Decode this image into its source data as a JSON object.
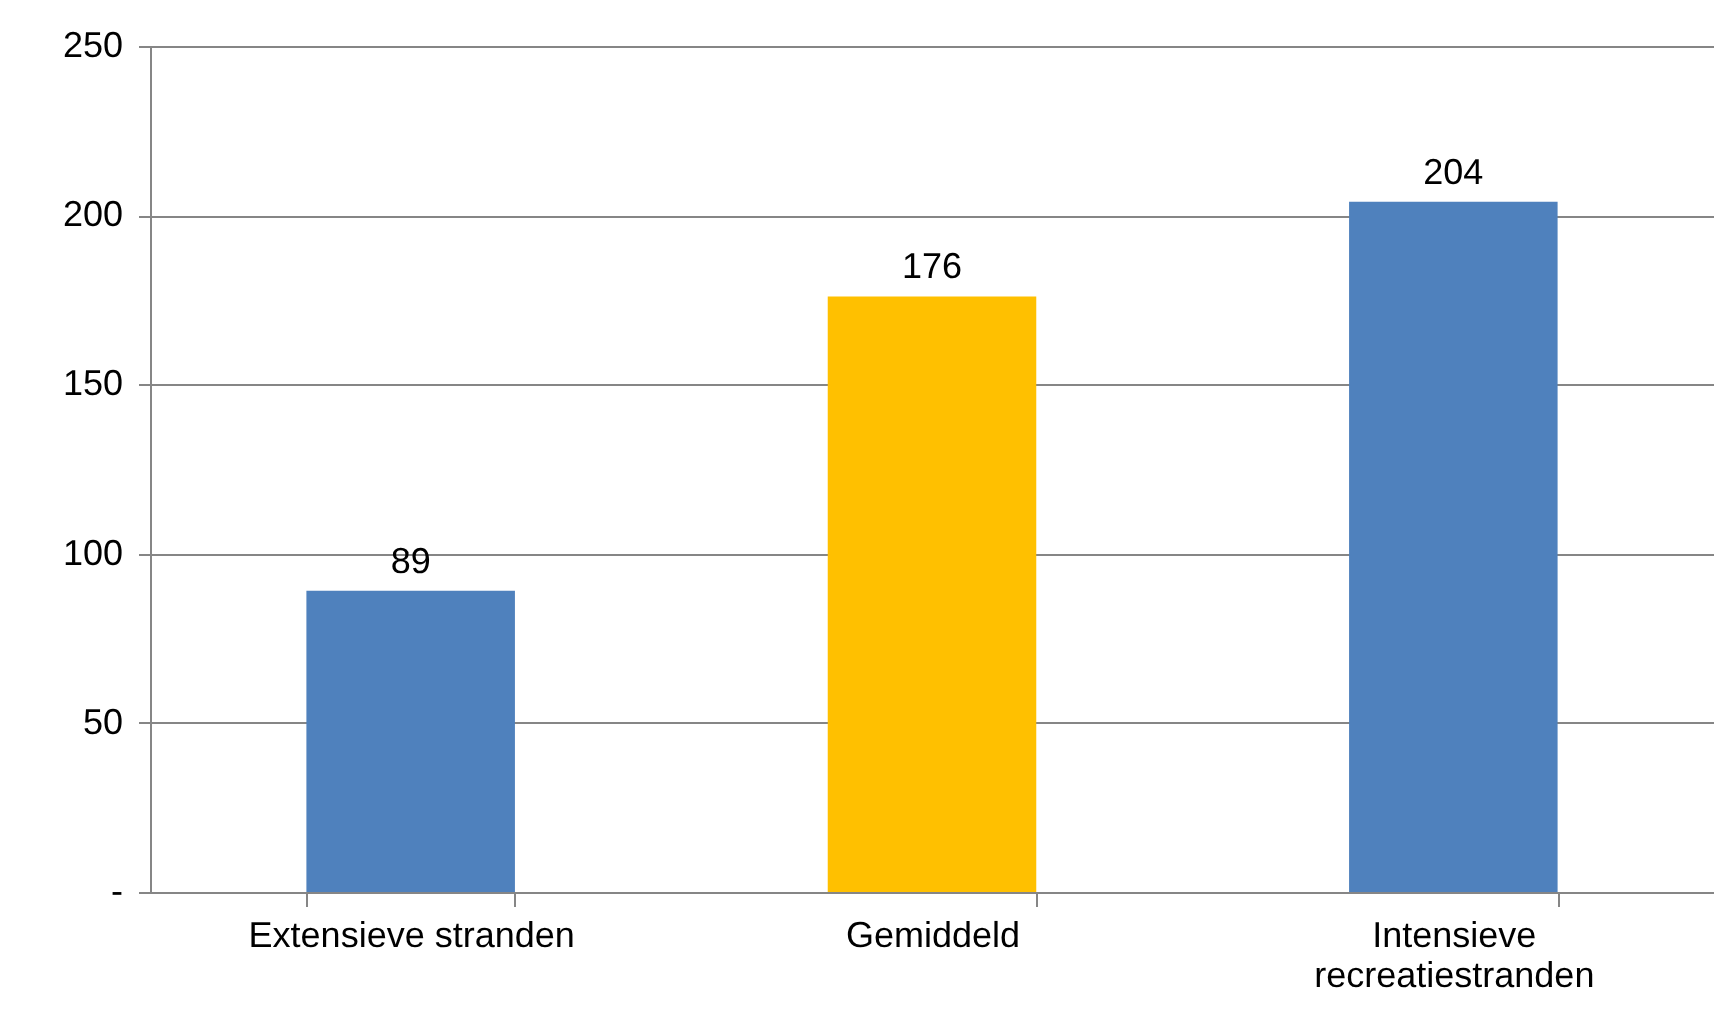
{
  "chart_data": {
    "type": "bar",
    "categories": [
      "Extensieve stranden",
      "Gemiddeld",
      "Intensieve recreatiestranden"
    ],
    "values": [
      89,
      176,
      204
    ],
    "colors": [
      "#4f81bd",
      "#ffc000",
      "#4f81bd"
    ],
    "ylim": [
      0,
      250
    ],
    "yticks": [
      {
        "value": 0,
        "label": "-"
      },
      50,
      100,
      150,
      200,
      250
    ],
    "grid": "y",
    "data_labels": true
  }
}
